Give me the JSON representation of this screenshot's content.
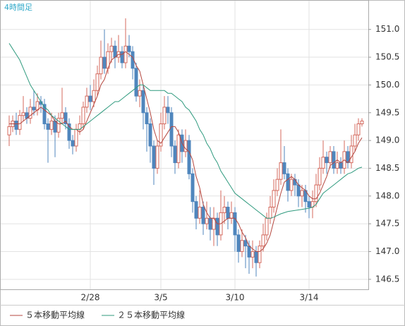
{
  "chart_data": {
    "type": "candlestick",
    "title": "4時間足",
    "categories": [
      null,
      null,
      null,
      null,
      null,
      null,
      null,
      null,
      null,
      null,
      null,
      null,
      null,
      null,
      null,
      null,
      null,
      null,
      null,
      null,
      null,
      null,
      null,
      "2/28",
      null,
      null,
      null,
      null,
      null,
      null,
      null,
      null,
      null,
      null,
      null,
      null,
      null,
      null,
      null,
      null,
      null,
      null,
      null,
      "3/5",
      null,
      null,
      null,
      null,
      null,
      null,
      null,
      null,
      null,
      null,
      null,
      null,
      null,
      null,
      null,
      null,
      null,
      null,
      null,
      null,
      "3/10",
      null,
      null,
      null,
      null,
      null,
      null,
      null,
      null,
      null,
      null,
      null,
      null,
      null,
      null,
      null,
      null,
      null,
      null,
      null,
      null,
      "3/14",
      null,
      null,
      null,
      null,
      null,
      null,
      null,
      null,
      null,
      null,
      null,
      null,
      null,
      null,
      null
    ],
    "open": [
      149.1,
      149.25,
      149.35,
      149.2,
      149.45,
      149.5,
      149.4,
      149.6,
      149.55,
      149.7,
      149.65,
      149.3,
      149.2,
      149.35,
      149.15,
      149.4,
      149.5,
      149.3,
      149.0,
      148.9,
      149.2,
      149.3,
      149.6,
      149.8,
      149.7,
      149.9,
      150.2,
      150.5,
      150.3,
      150.6,
      150.7,
      150.5,
      150.6,
      150.4,
      150.7,
      150.6,
      150.3,
      149.8,
      149.9,
      149.5,
      149.3,
      148.9,
      148.5,
      148.9,
      149.3,
      149.6,
      149.5,
      148.9,
      148.6,
      149.1,
      148.8,
      149.0,
      148.4,
      147.9,
      147.6,
      147.8,
      147.5,
      147.6,
      147.4,
      147.6,
      147.3,
      147.7,
      147.8,
      147.6,
      147.7,
      147.3,
      147.0,
      147.2,
      147.1,
      146.9,
      147.0,
      146.8,
      147.1,
      147.3,
      147.6,
      147.8,
      148.1,
      148.3,
      148.6,
      148.4,
      148.1,
      148.3,
      148.2,
      148.0,
      148.1,
      147.9,
      147.8,
      147.9,
      148.2,
      148.5,
      148.7,
      148.6,
      148.8,
      148.5,
      148.6,
      148.5,
      148.8,
      148.6,
      148.9,
      149.1,
      149.3
    ],
    "high": [
      149.45,
      149.45,
      149.5,
      149.55,
      149.8,
      149.6,
      149.75,
      149.9,
      149.85,
      149.8,
      149.75,
      149.4,
      149.5,
      149.45,
      149.5,
      149.95,
      149.6,
      149.4,
      149.1,
      149.3,
      149.45,
      149.7,
      149.95,
      150.0,
      150.1,
      150.35,
      150.8,
      151.0,
      150.75,
      150.85,
      150.8,
      150.9,
      150.7,
      151.2,
      150.9,
      150.7,
      150.4,
      150.1,
      150.0,
      149.6,
      149.4,
      149.0,
      149.0,
      149.5,
      149.8,
      149.8,
      149.6,
      149.0,
      149.2,
      149.2,
      149.2,
      149.1,
      148.5,
      148.0,
      148.1,
      147.9,
      147.9,
      147.8,
      147.8,
      147.7,
      148.1,
      148.0,
      147.9,
      147.9,
      147.8,
      147.4,
      147.4,
      147.3,
      147.2,
      147.2,
      147.1,
      147.2,
      147.5,
      147.7,
      148.0,
      148.3,
      148.5,
      149.2,
      148.9,
      148.5,
      148.4,
      148.4,
      148.3,
      148.2,
      148.2,
      148.0,
      148.1,
      148.4,
      148.7,
      149.0,
      148.8,
      148.9,
      148.9,
      148.8,
      148.7,
      149.0,
      148.9,
      149.1,
      149.3,
      149.4,
      149.4
    ],
    "low": [
      148.9,
      149.15,
      149.1,
      149.1,
      149.35,
      149.3,
      149.3,
      149.45,
      149.45,
      149.5,
      149.2,
      148.6,
      149.1,
      148.7,
      149.05,
      149.3,
      149.2,
      148.85,
      148.75,
      148.8,
      149.1,
      149.2,
      149.5,
      149.55,
      149.6,
      149.8,
      150.1,
      150.2,
      150.2,
      150.4,
      150.3,
      150.4,
      150.3,
      150.3,
      150.5,
      150.1,
      149.7,
      149.6,
      149.2,
      148.8,
      148.6,
      148.2,
      148.4,
      148.8,
      149.2,
      149.3,
      148.7,
      148.4,
      148.5,
      148.6,
      148.7,
      148.3,
      147.7,
      147.4,
      147.5,
      147.3,
      147.4,
      147.2,
      147.1,
      147.1,
      147.2,
      147.5,
      147.4,
      147.5,
      147.0,
      146.8,
      146.9,
      146.7,
      146.6,
      146.7,
      146.55,
      146.7,
      147.0,
      147.2,
      147.5,
      147.7,
      148.0,
      148.2,
      148.3,
      147.9,
      148.0,
      148.0,
      147.8,
      147.8,
      147.7,
      147.6,
      147.6,
      147.8,
      148.1,
      148.4,
      148.4,
      148.5,
      148.4,
      148.4,
      148.4,
      148.4,
      148.5,
      148.5,
      148.8,
      149.0,
      149.25
    ],
    "close": [
      149.25,
      149.35,
      149.2,
      149.45,
      149.5,
      149.4,
      149.6,
      149.55,
      149.7,
      149.65,
      149.3,
      149.2,
      149.35,
      149.15,
      149.4,
      149.5,
      149.3,
      149.0,
      148.9,
      149.2,
      149.3,
      149.6,
      149.8,
      149.7,
      149.9,
      150.2,
      150.5,
      150.3,
      150.6,
      150.7,
      150.5,
      150.6,
      150.4,
      150.7,
      150.6,
      150.3,
      149.8,
      149.9,
      149.5,
      149.3,
      148.9,
      148.5,
      148.9,
      149.3,
      149.6,
      149.5,
      148.9,
      148.6,
      149.1,
      148.8,
      149.0,
      148.4,
      147.9,
      147.6,
      147.8,
      147.5,
      147.6,
      147.4,
      147.6,
      147.3,
      147.7,
      147.8,
      147.6,
      147.7,
      147.3,
      147.0,
      147.2,
      147.1,
      146.9,
      147.0,
      146.8,
      147.1,
      147.3,
      147.6,
      147.8,
      148.1,
      148.3,
      148.6,
      148.4,
      148.1,
      148.3,
      148.2,
      148.0,
      148.1,
      147.9,
      147.8,
      147.9,
      148.2,
      148.5,
      148.7,
      148.6,
      148.8,
      148.5,
      148.6,
      148.5,
      148.8,
      148.6,
      148.9,
      149.1,
      149.3,
      149.35
    ],
    "up_color": "#d46a5e",
    "down_color": "#4f86bd",
    "series": [
      {
        "name": "５本移動平均線",
        "color": "#b5473f",
        "values": [
          149.3,
          149.3,
          149.3,
          149.3,
          149.35,
          149.4,
          149.45,
          149.5,
          149.55,
          149.6,
          149.55,
          149.5,
          149.45,
          149.35,
          149.3,
          149.3,
          149.35,
          149.25,
          149.2,
          149.2,
          149.15,
          149.2,
          149.35,
          149.5,
          149.65,
          149.8,
          150.0,
          150.1,
          150.3,
          150.45,
          150.5,
          150.55,
          150.55,
          150.6,
          150.55,
          150.5,
          150.35,
          150.25,
          150.0,
          149.75,
          149.5,
          149.2,
          149.0,
          148.95,
          149.05,
          149.15,
          149.25,
          149.25,
          149.15,
          148.95,
          148.85,
          148.8,
          148.65,
          148.35,
          148.15,
          147.85,
          147.7,
          147.6,
          147.6,
          147.5,
          147.5,
          147.55,
          147.6,
          147.6,
          147.6,
          147.5,
          147.35,
          147.25,
          147.1,
          147.05,
          147.0,
          147.0,
          147.05,
          147.15,
          147.3,
          147.55,
          147.8,
          148.05,
          148.25,
          148.3,
          148.35,
          148.3,
          148.2,
          148.15,
          148.1,
          148.0,
          147.95,
          147.95,
          148.05,
          148.2,
          148.35,
          148.55,
          148.6,
          148.65,
          148.6,
          148.65,
          148.6,
          148.7,
          148.8,
          148.95,
          149.05
        ]
      },
      {
        "name": "２５本移動平均線",
        "color": "#2f9a7e",
        "values": [
          150.75,
          150.65,
          150.55,
          150.45,
          150.3,
          150.15,
          150.0,
          149.9,
          149.8,
          149.7,
          149.6,
          149.55,
          149.45,
          149.4,
          149.35,
          149.3,
          149.25,
          149.2,
          149.2,
          149.2,
          149.2,
          149.25,
          149.3,
          149.35,
          149.4,
          149.45,
          149.5,
          149.55,
          149.6,
          149.65,
          149.7,
          149.7,
          149.75,
          149.8,
          149.85,
          149.9,
          149.95,
          150.0,
          150.0,
          149.95,
          149.9,
          149.9,
          149.9,
          149.9,
          149.9,
          149.85,
          149.85,
          149.8,
          149.75,
          149.7,
          149.6,
          149.55,
          149.45,
          149.35,
          149.2,
          149.1,
          148.95,
          148.85,
          148.7,
          148.6,
          148.45,
          148.35,
          148.25,
          148.15,
          148.05,
          148.0,
          147.95,
          147.9,
          147.85,
          147.8,
          147.75,
          147.7,
          147.65,
          147.6,
          147.6,
          147.62,
          147.65,
          147.68,
          147.7,
          147.72,
          147.73,
          147.74,
          147.75,
          147.76,
          147.77,
          147.78,
          147.8,
          147.85,
          147.95,
          148.05,
          148.1,
          148.15,
          148.2,
          148.25,
          148.3,
          148.35,
          148.4,
          148.42,
          148.46,
          148.5,
          148.52
        ]
      }
    ],
    "ylim": [
      146.32,
      151.53
    ],
    "yticks": [
      146.5,
      {
        "value": 147,
        "label": "147.0"
      },
      147.5,
      {
        "value": 148,
        "label": "148.0"
      },
      148.5,
      {
        "value": 149,
        "label": "149.0"
      },
      149.5,
      {
        "value": 150,
        "label": "150.0"
      },
      150.5,
      {
        "value": 151,
        "label": "151.0"
      }
    ],
    "grid": true
  }
}
